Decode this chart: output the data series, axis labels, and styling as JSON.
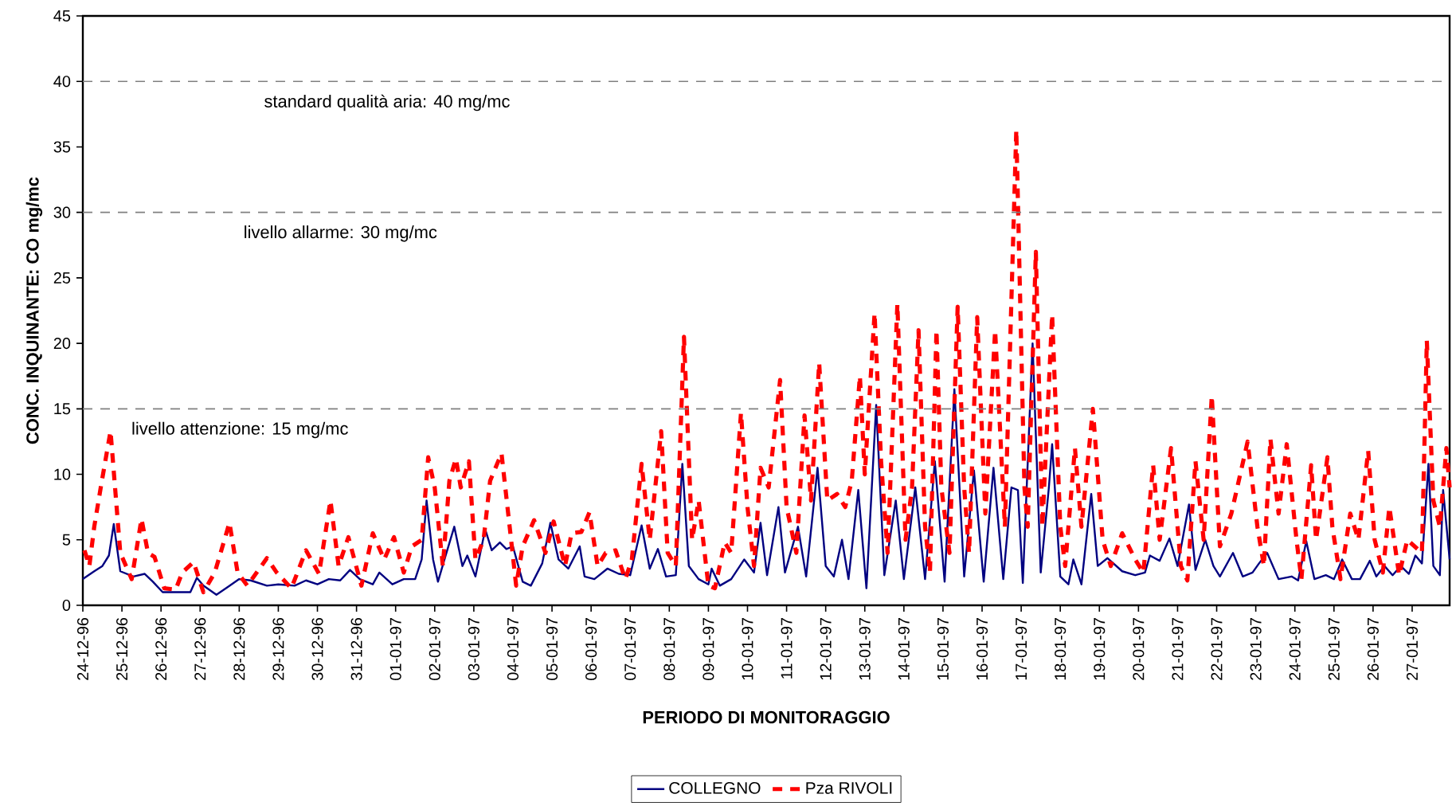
{
  "chart_data": {
    "type": "line",
    "xlabel": "PERIODO DI MONITORAGGIO",
    "ylabel": "CONC. INQUINANTE: CO mg/mc",
    "xlim": [
      "1996-12-24T00:00",
      "1997-01-27T23:00"
    ],
    "ylim": [
      0,
      45
    ],
    "yticks": [
      0,
      5,
      10,
      15,
      20,
      25,
      30,
      35,
      40,
      45
    ],
    "xticks": [
      {
        "value": "1996-12-24",
        "label": "24-12-96"
      },
      {
        "value": "1996-12-25",
        "label": "25-12-96"
      },
      {
        "value": "1996-12-26",
        "label": "26-12-96"
      },
      {
        "value": "1996-12-27",
        "label": "27-12-96"
      },
      {
        "value": "1996-12-28",
        "label": "28-12-96"
      },
      {
        "value": "1996-12-29",
        "label": "29-12-96"
      },
      {
        "value": "1996-12-30",
        "label": "30-12-96"
      },
      {
        "value": "1996-12-31",
        "label": "31-12-96"
      },
      {
        "value": "1997-01-01",
        "label": "01-01-97"
      },
      {
        "value": "1997-01-02",
        "label": "02-01-97"
      },
      {
        "value": "1997-01-03",
        "label": "03-01-97"
      },
      {
        "value": "1997-01-04",
        "label": "04-01-97"
      },
      {
        "value": "1997-01-05",
        "label": "05-01-97"
      },
      {
        "value": "1997-01-06",
        "label": "06-01-97"
      },
      {
        "value": "1997-01-07",
        "label": "07-01-97"
      },
      {
        "value": "1997-01-08",
        "label": "08-01-97"
      },
      {
        "value": "1997-01-09",
        "label": "09-01-97"
      },
      {
        "value": "1997-01-10",
        "label": "10-01-97"
      },
      {
        "value": "1997-01-11",
        "label": "11-01-97"
      },
      {
        "value": "1997-01-12",
        "label": "12-01-97"
      },
      {
        "value": "1997-01-13",
        "label": "13-01-97"
      },
      {
        "value": "1997-01-14",
        "label": "14-01-97"
      },
      {
        "value": "1997-01-15",
        "label": "15-01-97"
      },
      {
        "value": "1997-01-16",
        "label": "16-01-97"
      },
      {
        "value": "1997-01-17",
        "label": "17-01-97"
      },
      {
        "value": "1997-01-18",
        "label": "18-01-97"
      },
      {
        "value": "1997-01-19",
        "label": "19-01-97"
      },
      {
        "value": "1997-01-20",
        "label": "20-01-97"
      },
      {
        "value": "1997-01-21",
        "label": "21-01-97"
      },
      {
        "value": "1997-01-22",
        "label": "22-01-97"
      },
      {
        "value": "1997-01-23",
        "label": "23-01-97"
      },
      {
        "value": "1997-01-24",
        "label": "24-01-97"
      },
      {
        "value": "1997-01-25",
        "label": "25-01-97"
      },
      {
        "value": "1997-01-26",
        "label": "26-01-97"
      },
      {
        "value": "1997-01-27",
        "label": "27-01-97"
      }
    ],
    "legend": "bottom",
    "marker": "none",
    "ref_lines": [
      {
        "axis": "y",
        "value": 40,
        "label": "standard qualità aria: 40 mg/mc",
        "color": "#808080",
        "line_style": "dashed"
      },
      {
        "axis": "y",
        "value": 30,
        "label": "livello allarme: 30 mg/mc",
        "color": "#808080",
        "line_style": "dashed"
      },
      {
        "axis": "y",
        "value": 15,
        "label": "livello attenzione: 15 mg/mc",
        "color": "#808080",
        "line_style": "dashed"
      }
    ],
    "series": [
      {
        "name": "COLLEGNO",
        "color": "#000080",
        "line_style": "solid",
        "x": [
          "1996-12-24T00:00",
          "1996-12-24T07:00",
          "1996-12-24T12:00",
          "1996-12-24T16:00",
          "1996-12-24T19:00",
          "1996-12-24T23:00",
          "1996-12-25T07:00",
          "1996-12-25T14:00",
          "1996-12-25T19:00",
          "1996-12-26T01:00",
          "1996-12-26T10:00",
          "1996-12-26T18:00",
          "1996-12-26T22:00",
          "1996-12-27T02:00",
          "1996-12-27T10:00",
          "1996-12-27T17:00",
          "1996-12-28T00:00",
          "1996-12-28T07:00",
          "1996-12-28T17:00",
          "1996-12-29T00:00",
          "1996-12-29T10:00",
          "1996-12-29T17:00",
          "1996-12-30T00:00",
          "1996-12-30T07:00",
          "1996-12-30T14:00",
          "1996-12-30T20:00",
          "1996-12-31T02:00",
          "1996-12-31T10:00",
          "1996-12-31T14:00",
          "1996-12-31T22:00",
          "1997-01-01T05:00",
          "1997-01-01T12:00",
          "1997-01-01T16:00",
          "1997-01-01T19:00",
          "1997-01-01T23:00",
          "1997-01-02T02:00",
          "1997-01-02T06:00",
          "1997-01-02T12:00",
          "1997-01-02T17:00",
          "1997-01-02T20:00",
          "1997-01-03T01:00",
          "1997-01-03T07:00",
          "1997-01-03T11:00",
          "1997-01-03T16:00",
          "1997-01-03T20:00",
          "1997-01-04T00:00",
          "1997-01-04T06:00",
          "1997-01-04T11:00",
          "1997-01-04T18:00",
          "1997-01-04T23:00",
          "1997-01-05T04:00",
          "1997-01-05T10:00",
          "1997-01-05T17:00",
          "1997-01-05T20:00",
          "1997-01-06T02:00",
          "1997-01-06T10:00",
          "1997-01-06T17:00",
          "1997-01-07T00:00",
          "1997-01-07T07:00",
          "1997-01-07T12:00",
          "1997-01-07T17:00",
          "1997-01-07T22:00",
          "1997-01-08T04:00",
          "1997-01-08T08:00",
          "1997-01-08T12:00",
          "1997-01-08T18:00",
          "1997-01-09T00:00",
          "1997-01-09T02:00",
          "1997-01-09T07:00",
          "1997-01-09T14:00",
          "1997-01-09T22:00",
          "1997-01-10T04:00",
          "1997-01-10T08:00",
          "1997-01-10T12:00",
          "1997-01-10T19:00",
          "1997-01-10T23:00",
          "1997-01-11T07:00",
          "1997-01-11T12:00",
          "1997-01-11T19:00",
          "1997-01-12T00:00",
          "1997-01-12T05:00",
          "1997-01-12T10:00",
          "1997-01-12T14:00",
          "1997-01-12T20:00",
          "1997-01-13T01:00",
          "1997-01-13T07:00",
          "1997-01-13T12:00",
          "1997-01-13T19:00",
          "1997-01-14T00:00",
          "1997-01-14T07:00",
          "1997-01-14T13:00",
          "1997-01-14T19:00",
          "1997-01-15T01:00",
          "1997-01-15T07:00",
          "1997-01-15T13:00",
          "1997-01-15T19:00",
          "1997-01-16T01:00",
          "1997-01-16T07:00",
          "1997-01-16T13:00",
          "1997-01-16T18:00",
          "1997-01-16T22:00",
          "1997-01-17T01:00",
          "1997-01-17T07:00",
          "1997-01-17T12:00",
          "1997-01-17T17:00",
          "1997-01-17T19:00",
          "1997-01-18T00:00",
          "1997-01-18T05:00",
          "1997-01-18T08:00",
          "1997-01-18T13:00",
          "1997-01-18T19:00",
          "1997-01-18T23:00",
          "1997-01-19T05:00",
          "1997-01-19T14:00",
          "1997-01-19T22:00",
          "1997-01-20T04:00",
          "1997-01-20T07:00",
          "1997-01-20T13:00",
          "1997-01-20T19:00",
          "1997-01-21T00:00",
          "1997-01-21T07:00",
          "1997-01-21T11:00",
          "1997-01-21T17:00",
          "1997-01-21T22:00",
          "1997-01-22T02:00",
          "1997-01-22T10:00",
          "1997-01-22T16:00",
          "1997-01-22T22:00",
          "1997-01-23T02:00",
          "1997-01-23T07:00",
          "1997-01-23T14:00",
          "1997-01-23T22:00",
          "1997-01-24T02:00",
          "1997-01-24T07:00",
          "1997-01-24T12:00",
          "1997-01-24T19:00",
          "1997-01-25T00:00",
          "1997-01-25T05:00",
          "1997-01-25T11:00",
          "1997-01-25T16:00",
          "1997-01-25T22:00",
          "1997-01-26T02:00",
          "1997-01-26T07:00",
          "1997-01-26T12:00",
          "1997-01-26T17:00",
          "1997-01-26T22:00",
          "1997-01-27T02:00",
          "1997-01-27T06:00",
          "1997-01-27T10:00",
          "1997-01-27T13:00",
          "1997-01-27T17:00",
          "1997-01-27T19:00",
          "1997-01-27T23:00"
        ],
        "values": [
          2.0,
          2.6,
          3.0,
          3.8,
          6.2,
          2.6,
          2.2,
          2.4,
          1.8,
          1.0,
          1.0,
          1.0,
          2.1,
          1.5,
          0.8,
          1.4,
          2.0,
          1.9,
          1.5,
          1.6,
          1.5,
          1.9,
          1.6,
          2.0,
          1.9,
          2.7,
          2.0,
          1.6,
          2.5,
          1.6,
          2.0,
          2.0,
          3.5,
          8.0,
          3.5,
          1.8,
          3.5,
          6.0,
          3.0,
          3.8,
          2.2,
          5.8,
          4.2,
          4.8,
          4.3,
          4.5,
          1.8,
          1.5,
          3.2,
          6.3,
          3.5,
          2.8,
          4.5,
          2.2,
          2.0,
          2.8,
          2.4,
          2.3,
          6.1,
          2.8,
          4.3,
          2.2,
          2.3,
          10.8,
          3.0,
          2.0,
          1.6,
          2.8,
          1.5,
          2.0,
          3.5,
          2.5,
          6.3,
          2.3,
          7.5,
          2.5,
          6.0,
          2.2,
          10.5,
          3.0,
          2.2,
          5.0,
          2.0,
          8.8,
          1.3,
          15.3,
          2.3,
          8.0,
          2.0,
          9.0,
          2.0,
          11.0,
          1.8,
          16.5,
          2.2,
          10.3,
          1.8,
          10.5,
          2.0,
          9.0,
          8.8,
          1.7,
          20.0,
          2.5,
          9.0,
          12.3,
          2.2,
          1.6,
          3.5,
          1.6,
          8.5,
          3.0,
          3.6,
          2.6,
          2.3,
          2.5,
          3.8,
          3.4,
          5.1,
          3.0,
          7.7,
          2.7,
          5.0,
          3.0,
          2.2,
          4.0,
          2.2,
          2.5,
          3.2,
          4.0,
          2.0,
          2.2,
          1.9,
          4.9,
          2.0,
          2.3,
          2.0,
          3.5,
          2.0,
          2.0,
          3.4,
          2.2,
          3.0,
          2.3,
          3.0,
          2.4,
          3.8,
          3.2,
          10.8,
          3.0,
          2.3,
          8.8,
          3.5
        ]
      },
      {
        "name": "Pza RIVOLI",
        "color": "#ff0000",
        "line_style": "dashed",
        "x": [
          "1996-12-24T01:00",
          "1996-12-24T04:00",
          "1996-12-24T07:00",
          "1996-12-24T11:00",
          "1996-12-24T17:00",
          "1996-12-24T23:00",
          "1996-12-25T06:00",
          "1996-12-25T12:00",
          "1996-12-25T16:00",
          "1996-12-25T20:00",
          "1996-12-26T02:00",
          "1996-12-26T09:00",
          "1996-12-26T13:00",
          "1996-12-26T20:00",
          "1996-12-27T02:00",
          "1996-12-27T09:00",
          "1996-12-27T18:00",
          "1996-12-27T23:00",
          "1996-12-28T05:00",
          "1996-12-28T17:00",
          "1996-12-28T23:00",
          "1996-12-29T08:00",
          "1996-12-29T17:00",
          "1996-12-30T01:00",
          "1996-12-30T08:00",
          "1996-12-30T13:00",
          "1996-12-30T19:00",
          "1996-12-31T03:00",
          "1996-12-31T10:00",
          "1996-12-31T17:00",
          "1996-12-31T23:00",
          "1997-01-01T05:00",
          "1997-01-01T10:00",
          "1997-01-01T16:00",
          "1997-01-01T20:00",
          "1997-01-02T00:00",
          "1997-01-02T05:00",
          "1997-01-02T09:00",
          "1997-01-02T13:00",
          "1997-01-02T16:00",
          "1997-01-02T21:00",
          "1997-01-03T01:00",
          "1997-01-03T06:00",
          "1997-01-03T10:00",
          "1997-01-03T17:00",
          "1997-01-03T22:00",
          "1997-01-04T02:00",
          "1997-01-04T06:00",
          "1997-01-04T13:00",
          "1997-01-04T20:00",
          "1997-01-05T01:00",
          "1997-01-05T08:00",
          "1997-01-05T12:00",
          "1997-01-05T18:00",
          "1997-01-05T23:00",
          "1997-01-06T04:00",
          "1997-01-06T09:00",
          "1997-01-06T15:00",
          "1997-01-06T21:00",
          "1997-01-07T01:00",
          "1997-01-07T07:00",
          "1997-01-07T12:00",
          "1997-01-07T19:00",
          "1997-01-07T23:00",
          "1997-01-08T04:00",
          "1997-01-08T09:00",
          "1997-01-08T14:00",
          "1997-01-08T18:00",
          "1997-01-09T00:00",
          "1997-01-09T04:00",
          "1997-01-09T10:00",
          "1997-01-09T14:00",
          "1997-01-09T20:00",
          "1997-01-10T00:00",
          "1997-01-10T04:00",
          "1997-01-10T08:00",
          "1997-01-10T13:00",
          "1997-01-10T20:00",
          "1997-01-11T00:00",
          "1997-01-11T06:00",
          "1997-01-11T11:00",
          "1997-01-11T15:00",
          "1997-01-11T20:00",
          "1997-01-12T01:00",
          "1997-01-12T07:00",
          "1997-01-12T12:00",
          "1997-01-12T16:00",
          "1997-01-12T21:00",
          "1997-01-13T00:00",
          "1997-01-13T06:00",
          "1997-01-13T10:00",
          "1997-01-13T14:00",
          "1997-01-13T20:00",
          "1997-01-14T01:00",
          "1997-01-14T05:00",
          "1997-01-14T09:00",
          "1997-01-14T13:00",
          "1997-01-14T16:00",
          "1997-01-14T20:00",
          "1997-01-14T23:00",
          "1997-01-15T04:00",
          "1997-01-15T09:00",
          "1997-01-15T13:00",
          "1997-01-15T16:00",
          "1997-01-15T21:00",
          "1997-01-16T02:00",
          "1997-01-16T08:00",
          "1997-01-16T14:00",
          "1997-01-16T21:00",
          "1997-01-17T02:00",
          "1997-01-17T04:00",
          "1997-01-17T09:00",
          "1997-01-17T13:00",
          "1997-01-17T19:00",
          "1997-01-18T00:00",
          "1997-01-18T03:00",
          "1997-01-18T09:00",
          "1997-01-18T13:00",
          "1997-01-18T20:00",
          "1997-01-19T02:00",
          "1997-01-19T07:00",
          "1997-01-19T14:00",
          "1997-01-19T22:00",
          "1997-01-20T03:00",
          "1997-01-20T09:00",
          "1997-01-20T13:00",
          "1997-01-20T20:00",
          "1997-01-21T02:00",
          "1997-01-21T06:00",
          "1997-01-21T11:00",
          "1997-01-21T16:00",
          "1997-01-21T21:00",
          "1997-01-22T02:00",
          "1997-01-22T09:00",
          "1997-01-22T19:00",
          "1997-01-23T01:00",
          "1997-01-23T05:00",
          "1997-01-23T09:00",
          "1997-01-23T14:00",
          "1997-01-23T19:00",
          "1997-01-24T01:00",
          "1997-01-24T04:00",
          "1997-01-24T10:00",
          "1997-01-24T13:00",
          "1997-01-24T20:00",
          "1997-01-24T23:00",
          "1997-01-25T04:00",
          "1997-01-25T10:00",
          "1997-01-25T15:00",
          "1997-01-25T21:00",
          "1997-01-26T01:00",
          "1997-01-26T06:00",
          "1997-01-26T10:00",
          "1997-01-26T16:00",
          "1997-01-26T21:00",
          "1997-01-27T06:00",
          "1997-01-27T09:00",
          "1997-01-27T13:00",
          "1997-01-27T17:00",
          "1997-01-27T21:00",
          "1997-01-27T23:00"
        ],
        "values": [
          4.2,
          3.0,
          6.0,
          9.0,
          13.3,
          4.0,
          2.0,
          6.6,
          4.0,
          3.7,
          1.3,
          1.2,
          2.5,
          3.3,
          1.0,
          2.5,
          6.3,
          2.5,
          1.5,
          3.6,
          2.5,
          1.3,
          4.2,
          2.4,
          8.0,
          3.0,
          5.2,
          1.5,
          5.5,
          3.5,
          5.2,
          2.5,
          4.5,
          5.0,
          11.3,
          9.0,
          3.0,
          9.5,
          11.2,
          9.0,
          11.0,
          3.5,
          5.0,
          9.5,
          11.6,
          6.0,
          1.5,
          4.5,
          6.5,
          4.0,
          6.4,
          3.0,
          5.5,
          5.6,
          7.1,
          3.0,
          4.0,
          4.2,
          2.0,
          3.5,
          10.8,
          5.0,
          13.3,
          4.0,
          3.0,
          20.5,
          5.0,
          8.0,
          1.5,
          1.3,
          4.8,
          4.0,
          14.7,
          7.5,
          3.0,
          10.5,
          9.0,
          17.2,
          7.5,
          4.0,
          14.5,
          8.0,
          18.5,
          8.0,
          8.5,
          7.5,
          9.5,
          17.5,
          10.0,
          22.3,
          11.0,
          4.0,
          23.0,
          5.0,
          9.0,
          21.0,
          6.0,
          2.5,
          21.0,
          9.0,
          4.0,
          22.8,
          9.0,
          4.0,
          22.0,
          7.0,
          21.0,
          6.0,
          36.3,
          9.0,
          6.0,
          27.0,
          6.0,
          22.2,
          6.0,
          3.0,
          12.0,
          6.0,
          15.0,
          5.0,
          3.0,
          5.5,
          3.5,
          2.5,
          10.7,
          5.0,
          12.0,
          3.0,
          1.9,
          11.0,
          5.0,
          16.0,
          4.5,
          7.0,
          12.5,
          6.0,
          3.0,
          12.7,
          7.0,
          12.3,
          5.0,
          2.0,
          10.7,
          5.0,
          11.3,
          6.0,
          2.0,
          7.0,
          5.0,
          11.8,
          5.0,
          2.5,
          7.5,
          2.3,
          5.0,
          4.0,
          20.2,
          8.0,
          6.0,
          12.0,
          9.0
        ]
      }
    ]
  }
}
